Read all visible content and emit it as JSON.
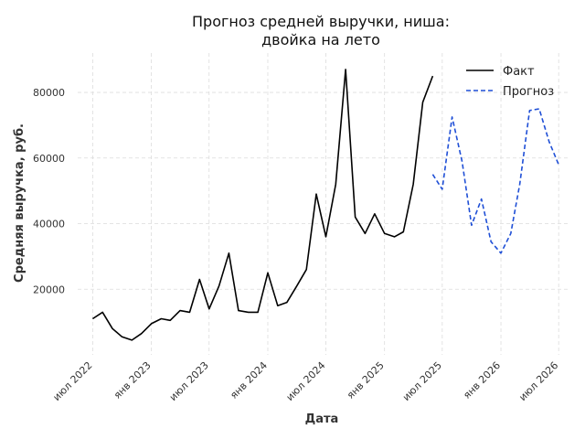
{
  "chart_data": {
    "type": "line",
    "title": [
      "Прогноз средней выручки, ниша:",
      "двойка на лето"
    ],
    "xlabel": "Дата",
    "ylabel": "Средняя выручка, руб.",
    "ylim": [
      0,
      92000
    ],
    "yticks": [
      20000,
      40000,
      60000,
      80000
    ],
    "ytick_labels": [
      "20000",
      "40000",
      "60000",
      "80000"
    ],
    "xlim": [
      "2022-05-15",
      "2026-08-01"
    ],
    "xticks": [
      "2022-07-01",
      "2023-01-01",
      "2023-07-01",
      "2024-01-01",
      "2024-07-01",
      "2025-01-01",
      "2025-07-01",
      "2026-01-01",
      "2026-07-01"
    ],
    "xtick_labels": [
      "июл 2022",
      "янв 2023",
      "июл 2023",
      "янв 2024",
      "июл 2024",
      "янв 2025",
      "июл 2025",
      "янв 2026",
      "июл 2026"
    ],
    "grid": true,
    "legend_position": "top-right",
    "series": [
      {
        "name": "Факт",
        "color": "#000000",
        "style": "solid",
        "x": [
          "2022-07-01",
          "2022-08-01",
          "2022-09-01",
          "2022-10-01",
          "2022-11-01",
          "2022-12-01",
          "2023-01-01",
          "2023-02-01",
          "2023-03-01",
          "2023-04-01",
          "2023-05-01",
          "2023-06-01",
          "2023-07-01",
          "2023-08-01",
          "2023-09-01",
          "2023-10-01",
          "2023-11-01",
          "2023-12-01",
          "2024-01-01",
          "2024-02-01",
          "2024-03-01",
          "2024-04-01",
          "2024-05-01",
          "2024-06-01",
          "2024-07-01",
          "2024-08-01",
          "2024-09-01",
          "2024-10-01",
          "2024-11-01",
          "2024-12-01",
          "2025-01-01",
          "2025-02-01",
          "2025-03-01",
          "2025-04-01",
          "2025-05-01",
          "2025-06-01"
        ],
        "y": [
          11000,
          13000,
          8000,
          5500,
          4500,
          6500,
          9500,
          11000,
          10500,
          13500,
          13000,
          23000,
          14000,
          21000,
          31000,
          13500,
          13000,
          13000,
          25000,
          15000,
          16000,
          21000,
          26000,
          49000,
          36000,
          52000,
          87000,
          42000,
          37000,
          43000,
          37000,
          36000,
          37500,
          52000,
          77000,
          85000
        ]
      },
      {
        "name": "Прогноз",
        "color": "#1f4fd6",
        "style": "dashed",
        "x": [
          "2025-06-01",
          "2025-07-01",
          "2025-08-01",
          "2025-09-01",
          "2025-10-01",
          "2025-11-01",
          "2025-12-01",
          "2026-01-01",
          "2026-02-01",
          "2026-03-01",
          "2026-04-01",
          "2026-05-01",
          "2026-06-01",
          "2026-07-01"
        ],
        "y": [
          55000,
          50500,
          72500,
          59000,
          39500,
          47500,
          34500,
          31000,
          37000,
          52000,
          74500,
          75000,
          65000,
          58000
        ]
      }
    ]
  }
}
